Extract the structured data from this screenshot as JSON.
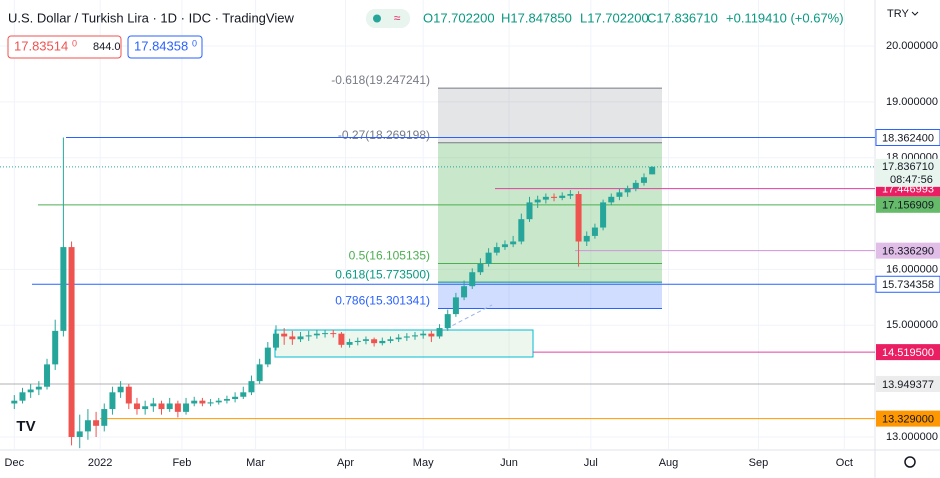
{
  "header": {
    "symbol": "U.S. Dollar / Turkish Lira · 1D · IDC · TradingView",
    "open": "O17.702200",
    "high": "H17.847850",
    "low": "L17.702200",
    "close": "C17.836710",
    "change": "+0.119410 (+0.67%)",
    "sell": "17.83514",
    "sell_sup": "0",
    "spread": "844.0",
    "buy": "17.84358",
    "buy_sup": "0",
    "currency": "TRY"
  },
  "chart_data": {
    "type": "candlestick",
    "xlim": [
      -3.5,
      210.5
    ],
    "xticks": [
      {
        "value": 0,
        "label": "Dec"
      },
      {
        "value": 21,
        "label": "2022"
      },
      {
        "value": 41,
        "label": "Feb"
      },
      {
        "value": 59,
        "label": "Mar"
      },
      {
        "value": 81,
        "label": "Apr"
      },
      {
        "value": 100,
        "label": "May"
      },
      {
        "value": 121,
        "label": "Jun"
      },
      {
        "value": 141,
        "label": "Jul"
      },
      {
        "value": 160,
        "label": "Aug"
      },
      {
        "value": 182,
        "label": "Sep"
      },
      {
        "value": 203,
        "label": "Oct"
      }
    ],
    "ylim": [
      12.767,
      20.824
    ],
    "yticks": [
      {
        "value": 20,
        "label": "20.000000"
      },
      {
        "value": 19,
        "label": "19.000000"
      },
      {
        "value": 18,
        "label": "18.000000"
      },
      {
        "value": 16,
        "label": "16.000000"
      },
      {
        "value": 15,
        "label": "15.000000"
      },
      {
        "value": 13,
        "label": "13.000000"
      }
    ],
    "up_color": "#26a69a",
    "down_color": "#ef5350",
    "candles": [
      [
        0,
        13.6,
        13.75,
        13.5,
        13.65
      ],
      [
        2,
        13.65,
        13.88,
        13.6,
        13.8
      ],
      [
        4,
        13.8,
        13.95,
        13.7,
        13.85
      ],
      [
        6,
        13.85,
        14.0,
        13.75,
        13.9
      ],
      [
        8,
        13.9,
        14.4,
        13.85,
        14.3
      ],
      [
        10,
        14.3,
        15.1,
        14.2,
        14.9
      ],
      [
        12,
        14.9,
        18.3624,
        14.8,
        16.4
      ],
      [
        14,
        16.4,
        16.5,
        12.85,
        13.0
      ],
      [
        16,
        13.0,
        13.4,
        12.8,
        13.1
      ],
      [
        18,
        13.1,
        13.5,
        12.95,
        13.3
      ],
      [
        20,
        13.3,
        13.45,
        13.0,
        13.2
      ],
      [
        22,
        13.2,
        13.6,
        13.1,
        13.5
      ],
      [
        24,
        13.5,
        13.9,
        13.4,
        13.8
      ],
      [
        26,
        13.8,
        14.0,
        13.7,
        13.9
      ],
      [
        28,
        13.9,
        13.95,
        13.5,
        13.6
      ],
      [
        30,
        13.6,
        13.7,
        13.4,
        13.5
      ],
      [
        32,
        13.5,
        13.65,
        13.4,
        13.55
      ],
      [
        34,
        13.55,
        13.7,
        13.45,
        13.6
      ],
      [
        36,
        13.6,
        13.65,
        13.4,
        13.5
      ],
      [
        38,
        13.5,
        13.7,
        13.45,
        13.6
      ],
      [
        40,
        13.6,
        13.65,
        13.35,
        13.45
      ],
      [
        42,
        13.45,
        13.7,
        13.4,
        13.6
      ],
      [
        44,
        13.6,
        13.72,
        13.55,
        13.65
      ],
      [
        46,
        13.65,
        13.7,
        13.55,
        13.6
      ],
      [
        48,
        13.6,
        13.68,
        13.55,
        13.62
      ],
      [
        50,
        13.62,
        13.7,
        13.58,
        13.65
      ],
      [
        52,
        13.65,
        13.74,
        13.6,
        13.68
      ],
      [
        54,
        13.68,
        13.8,
        13.62,
        13.72
      ],
      [
        56,
        13.72,
        13.9,
        13.68,
        13.8
      ],
      [
        58,
        13.8,
        14.1,
        13.75,
        14.0
      ],
      [
        60,
        14.0,
        14.4,
        13.95,
        14.3
      ],
      [
        62,
        14.3,
        14.7,
        14.25,
        14.6
      ],
      [
        64,
        14.6,
        15.0,
        14.55,
        14.85
      ],
      [
        66,
        14.85,
        14.95,
        14.65,
        14.8
      ],
      [
        68,
        14.8,
        14.9,
        14.65,
        14.75
      ],
      [
        70,
        14.75,
        14.88,
        14.7,
        14.8
      ],
      [
        72,
        14.8,
        14.9,
        14.72,
        14.82
      ],
      [
        74,
        14.82,
        14.92,
        14.76,
        14.85
      ],
      [
        76,
        14.85,
        14.92,
        14.78,
        14.86
      ],
      [
        78,
        14.86,
        14.92,
        14.78,
        14.85
      ],
      [
        80,
        14.85,
        14.88,
        14.6,
        14.65
      ],
      [
        82,
        14.65,
        14.76,
        14.6,
        14.7
      ],
      [
        84,
        14.7,
        14.78,
        14.64,
        14.72
      ],
      [
        86,
        14.72,
        14.8,
        14.66,
        14.75
      ],
      [
        88,
        14.75,
        14.78,
        14.62,
        14.68
      ],
      [
        90,
        14.68,
        14.78,
        14.64,
        14.72
      ],
      [
        92,
        14.72,
        14.8,
        14.68,
        14.75
      ],
      [
        94,
        14.75,
        14.84,
        14.7,
        14.78
      ],
      [
        96,
        14.78,
        14.86,
        14.72,
        14.8
      ],
      [
        98,
        14.8,
        14.88,
        14.74,
        14.82
      ],
      [
        100,
        14.82,
        14.9,
        14.76,
        14.85
      ],
      [
        102,
        14.85,
        14.9,
        14.7,
        14.8
      ],
      [
        104,
        14.8,
        15.02,
        14.76,
        14.95
      ],
      [
        106,
        14.95,
        15.28,
        14.9,
        15.2
      ],
      [
        108,
        15.2,
        15.58,
        15.15,
        15.5
      ],
      [
        110,
        15.5,
        15.8,
        15.45,
        15.7
      ],
      [
        112,
        15.7,
        16.02,
        15.65,
        15.95
      ],
      [
        114,
        15.95,
        16.2,
        15.9,
        16.1
      ],
      [
        116,
        16.1,
        16.38,
        16.05,
        16.3
      ],
      [
        118,
        16.3,
        16.48,
        16.25,
        16.4
      ],
      [
        120,
        16.4,
        16.52,
        16.35,
        16.45
      ],
      [
        122,
        16.45,
        16.6,
        16.4,
        16.5
      ],
      [
        124,
        16.5,
        17.0,
        16.45,
        16.9
      ],
      [
        126,
        16.9,
        17.3,
        16.85,
        17.2
      ],
      [
        128,
        17.2,
        17.32,
        17.1,
        17.25
      ],
      [
        130,
        17.25,
        17.36,
        17.18,
        17.3
      ],
      [
        132,
        17.3,
        17.36,
        17.22,
        17.28
      ],
      [
        134,
        17.28,
        17.38,
        17.24,
        17.32
      ],
      [
        136,
        17.32,
        17.42,
        17.26,
        17.35
      ],
      [
        138,
        17.35,
        17.4,
        16.05,
        16.5
      ],
      [
        140,
        16.5,
        16.68,
        16.42,
        16.6
      ],
      [
        142,
        16.6,
        16.82,
        16.55,
        16.75
      ],
      [
        144,
        16.75,
        17.25,
        16.7,
        17.2
      ],
      [
        146,
        17.2,
        17.36,
        17.15,
        17.3
      ],
      [
        148,
        17.3,
        17.44,
        17.24,
        17.38
      ],
      [
        150,
        17.38,
        17.5,
        17.3,
        17.45
      ],
      [
        152,
        17.45,
        17.6,
        17.4,
        17.55
      ],
      [
        154,
        17.55,
        17.72,
        17.5,
        17.65
      ],
      [
        156,
        17.7022,
        17.84785,
        17.7022,
        17.83671
      ]
    ],
    "levels": [
      {
        "value": 18.3624,
        "label": "18.362400",
        "color": "#2962ff",
        "badge": "#ffffff"
      },
      {
        "value": 17.446993,
        "label": "17.446993",
        "color": "#e040a0",
        "badge": "#e91e63"
      },
      {
        "value": 17.156909,
        "label": "17.156909",
        "color": "#4caf50",
        "badge": "#66bb6a"
      },
      {
        "value": 16.33629,
        "label": "16.336290",
        "color": "#ce93d8",
        "badge": "#e1bee7"
      },
      {
        "value": 15.734358,
        "label": "15.734358",
        "color": "#2962ff",
        "badge": "#ffffff"
      },
      {
        "value": 14.5195,
        "label": "14.519500",
        "color": "#e040a0",
        "badge": "#e91e63"
      },
      {
        "value": 13.949377,
        "label": "13.949377",
        "color": "#b0b0b0",
        "badge": "#ececec"
      },
      {
        "value": 13.329,
        "label": "13.329000",
        "color": "#ff9800",
        "badge": "#ff9800"
      }
    ],
    "last_price": {
      "value": 17.83671,
      "label": "17.836710",
      "countdown": "08:47:56"
    },
    "fib": [
      {
        "value": 19.247241,
        "label": "-0.618(19.247241)",
        "color": "#787b86"
      },
      {
        "value": 18.269198,
        "label": "-0.27(18.269198)",
        "color": "#787b86"
      },
      {
        "value": 16.105135,
        "label": "0.5(16.105135)",
        "color": "#4caf50"
      },
      {
        "value": 15.7735,
        "label": "0.618(15.773500)",
        "color": "#089981"
      },
      {
        "value": 15.301341,
        "label": "0.786(15.301341)",
        "color": "#2962ff"
      }
    ]
  }
}
